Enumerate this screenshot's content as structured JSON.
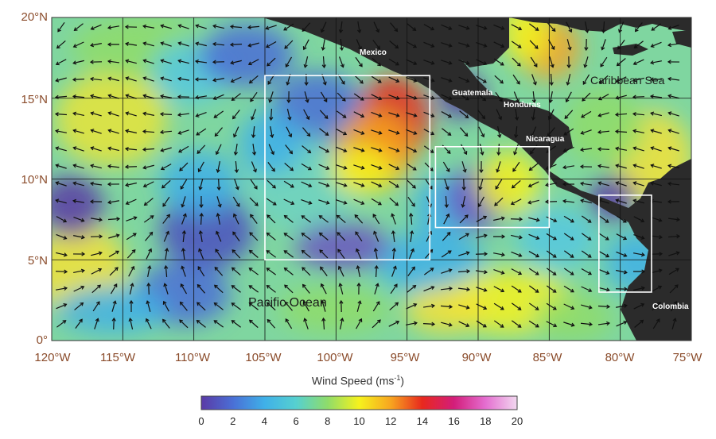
{
  "map": {
    "lat_ticks": [
      "20°N",
      "15°N",
      "10°N",
      "5°N",
      "0°"
    ],
    "lon_ticks": [
      "120°W",
      "115°W",
      "110°W",
      "105°W",
      "100°W",
      "95°W",
      "90°W",
      "85°W",
      "80°W",
      "75°W"
    ],
    "extent": {
      "lon_min": -120,
      "lon_max": -75,
      "lat_min": 0,
      "lat_max": 20
    },
    "places": {
      "mexico": "Mexico",
      "guatemala": "Guatemala",
      "honduras": "Honduras",
      "nicaragua": "Nicaragua",
      "caribbean": "Caribbean Sea",
      "pacific": "Pacific Ocean",
      "colombia": "Colombia"
    },
    "highlight_boxes_deg": [
      {
        "lon": [
          -105,
          -93.4
        ],
        "lat": [
          5,
          16.4
        ]
      },
      {
        "lon": [
          -93,
          -85
        ],
        "lat": [
          7,
          12
        ]
      },
      {
        "lon": [
          -81.5,
          -77.8
        ],
        "lat": [
          3,
          9
        ]
      }
    ],
    "land_color": "#2b2b2b"
  },
  "colorbar": {
    "title": "Wind Speed (ms",
    "title_sup": "-1",
    "title_end": ")",
    "ticks": [
      "0",
      "2",
      "4",
      "6",
      "8",
      "10",
      "12",
      "14",
      "16",
      "18",
      "20"
    ],
    "stops": [
      "#5a3aa6",
      "#4a6fd6",
      "#3fb0e8",
      "#56d0d0",
      "#8fdc6a",
      "#f6f21d",
      "#f7a520",
      "#e8281e",
      "#d31d7a",
      "#e46ed0",
      "#f2d8f0"
    ]
  }
}
